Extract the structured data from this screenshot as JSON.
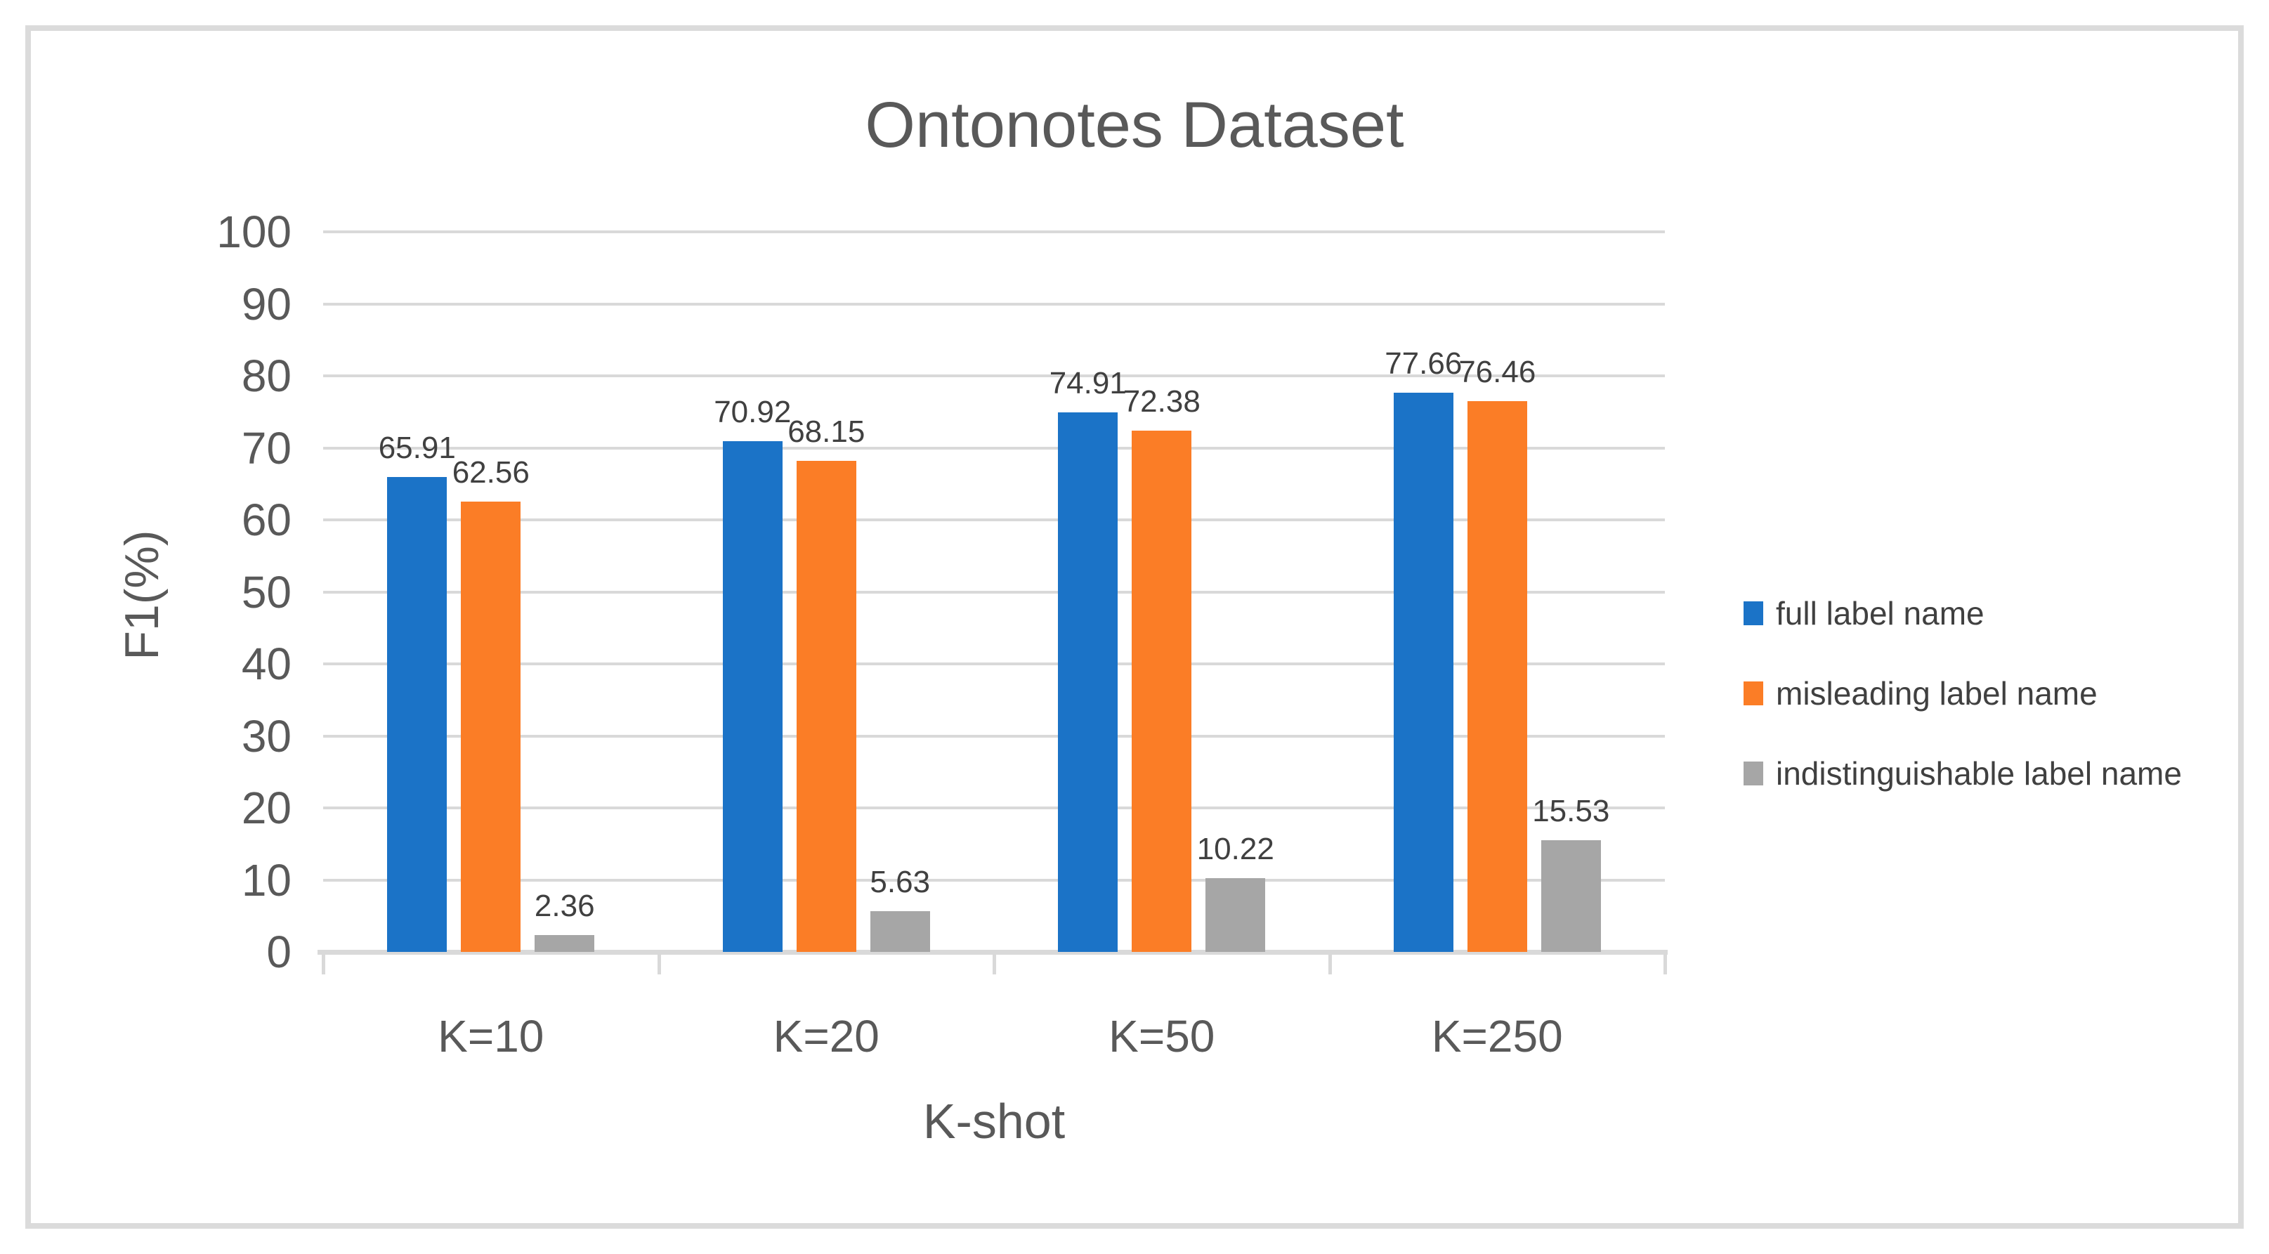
{
  "chart_data": {
    "type": "bar",
    "title": "Ontonotes Dataset",
    "xlabel": "K-shot",
    "ylabel": "F1(%)",
    "categories": [
      "K=10",
      "K=20",
      "K=50",
      "K=250"
    ],
    "series": [
      {
        "name": "full label name",
        "color": "#1B73C7",
        "values": [
          65.91,
          70.92,
          74.91,
          77.66
        ]
      },
      {
        "name": "misleading label name",
        "color": "#FB7D26",
        "values": [
          62.56,
          68.15,
          72.38,
          76.46
        ]
      },
      {
        "name": "indistinguishable label name",
        "color": "#A6A6A6",
        "values": [
          2.36,
          5.63,
          10.22,
          15.53
        ]
      }
    ],
    "ylim": [
      0,
      100
    ],
    "yticks": [
      0,
      10,
      20,
      30,
      40,
      50,
      60,
      70,
      80,
      90,
      100
    ],
    "grid": true,
    "legend_position": "right",
    "value_label_decimals": 2
  },
  "palette": {
    "gridline": "#D9D9D9",
    "axis_line": "#D9D9D9",
    "frame_border": "#DBDBDB",
    "axis_text": "#595959",
    "title_text": "#595959",
    "data_label_text": "#404040",
    "legend_text": "#404040",
    "background": "#FFFFFF"
  }
}
